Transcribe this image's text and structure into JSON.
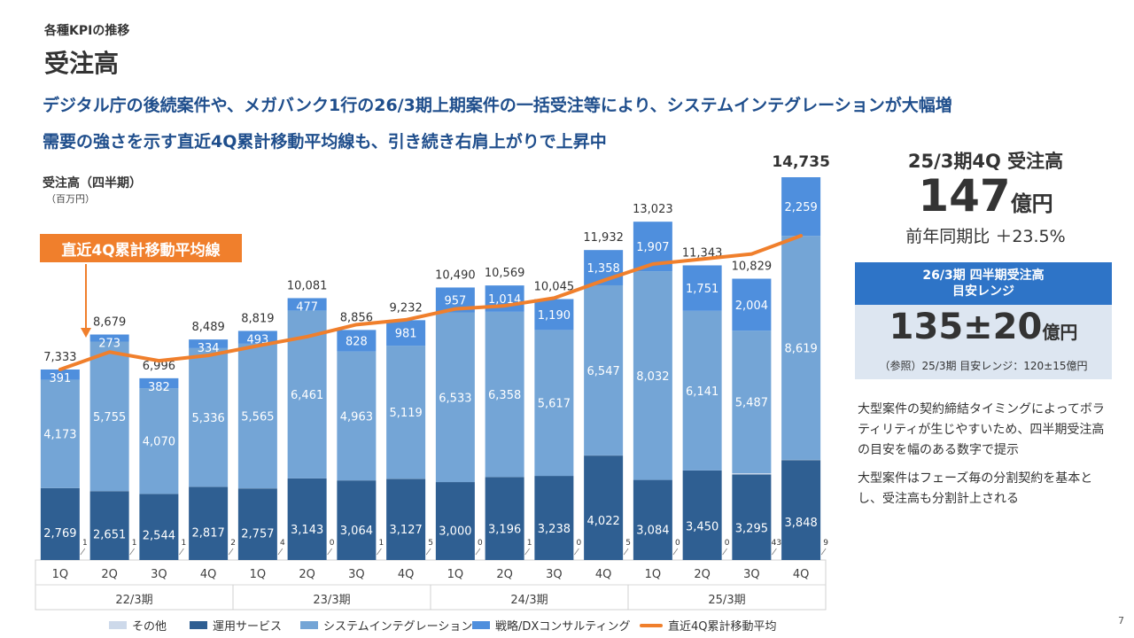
{
  "header": {
    "kicker": "各種KPIの推移",
    "title": "受注高",
    "headline1": "デジタル庁の後続案件や、メガバンク1行の26/3期上期案件の一括受注等により、システムインテグレーションが大幅増",
    "headline2": "需要の強さを示す直近4Q累計移動平均線も、引き続き右肩上がりで上昇中"
  },
  "chart_labels": {
    "ylabel": "受注高（四半期）",
    "yunit": "（百万円）",
    "ma_callout": "直近4Q累計移動平均線"
  },
  "chart_data": {
    "type": "bar",
    "stacked": true,
    "categories": [
      "1Q",
      "2Q",
      "3Q",
      "4Q",
      "1Q",
      "2Q",
      "3Q",
      "4Q",
      "1Q",
      "2Q",
      "3Q",
      "4Q",
      "1Q",
      "2Q",
      "3Q",
      "4Q"
    ],
    "fiscal_years": [
      "22/3期",
      "23/3期",
      "24/3期",
      "25/3期"
    ],
    "totals": [
      "7,333",
      "8,679",
      "6,996",
      "8,489",
      "8,819",
      "10,081",
      "8,856",
      "9,232",
      "10,490",
      "10,569",
      "10,045",
      "11,932",
      "13,023",
      "11,343",
      "10,829",
      "14,735"
    ],
    "series": [
      {
        "name": "その他",
        "color": "#cdd9ea",
        "values": [
          1,
          1,
          1,
          2,
          4,
          0,
          1,
          5,
          0,
          1,
          0,
          5,
          0,
          0,
          43,
          9
        ]
      },
      {
        "name": "運用サービス",
        "color": "#2f5f92",
        "values": [
          2769,
          2651,
          2544,
          2817,
          2757,
          3143,
          3064,
          3127,
          3000,
          3196,
          3238,
          4022,
          3084,
          3450,
          3295,
          3848
        ]
      },
      {
        "name": "システムインテグレーション",
        "color": "#74a5d6",
        "values": [
          4173,
          5755,
          4070,
          5336,
          5565,
          6461,
          4963,
          5119,
          6533,
          6358,
          5617,
          6547,
          8032,
          6141,
          5487,
          8619
        ]
      },
      {
        "name": "戦略/DXコンサルティング",
        "color": "#4f8fdd",
        "values": [
          391,
          273,
          382,
          334,
          493,
          477,
          828,
          981,
          957,
          1014,
          1190,
          1358,
          1907,
          1751,
          2004,
          2259
        ]
      }
    ],
    "moving_average": {
      "name": "直近4Q累計移動平均",
      "color": "#f07f2c"
    },
    "ylim": [
      0,
      15000
    ]
  },
  "right_panel": {
    "title": "25/3期4Q 受注高",
    "value": "147",
    "value_unit": "億円",
    "yoy": "前年同期比 ＋23.5%",
    "guide_title_line1": "26/3期 四半期受注高",
    "guide_title_line2": "目安レンジ",
    "guide_value": "135±20",
    "guide_unit": "億円",
    "guide_ref": "（参照）25/3期 目安レンジ：120±15億円",
    "note1": "大型案件の契約締結タイミングによってボラティリティが生じやすいため、四半期受注高の目安を幅のある数字で提示",
    "note2": "大型案件はフェーズ毎の分割契約を基本とし、受注高も分割計上される"
  },
  "legend": {
    "other": "その他",
    "ops": "運用サービス",
    "si": "システムインテグレーション",
    "dx": "戦略/DXコンサルティング",
    "ma": "直近4Q累計移動平均"
  },
  "page_number": "7"
}
